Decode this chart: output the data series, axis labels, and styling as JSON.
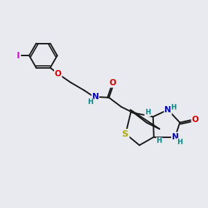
{
  "bg_color": "#e8eaf0",
  "bond_color": "#1a1a1a",
  "bond_width": 1.5,
  "atom_colors": {
    "I": "#ee00ee",
    "O": "#dd0000",
    "N": "#0000cc",
    "S": "#aaaa00",
    "H": "#008888",
    "C": "#1a1a1a"
  },
  "font_size_atom": 8.5,
  "font_size_H": 7.0,
  "font_size_I": 9.5
}
